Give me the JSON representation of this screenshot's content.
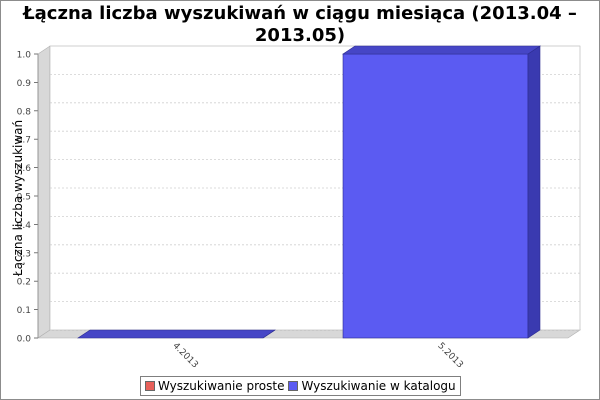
{
  "chart_data": {
    "type": "bar",
    "title_lines": [
      "Łączna liczba wyszukiwań w ciągu miesiąca (2013.04 –",
      "2013.05)"
    ],
    "ylabel": "Łączna liczba wyszukiwań",
    "xlabel": "",
    "categories": [
      "4.2013",
      "5.2013"
    ],
    "series": [
      {
        "name": "Wyszukiwanie proste",
        "values": [
          0,
          0
        ],
        "color": "#e8605a"
      },
      {
        "name": "Wyszukiwanie w katalogu",
        "values": [
          0,
          1.0
        ],
        "color": "#5b5bf2"
      }
    ],
    "ylim": [
      0,
      1.0
    ],
    "yticks": [
      "0.0",
      "0.1",
      "0.2",
      "0.3",
      "0.4",
      "0.5",
      "0.6",
      "0.7",
      "0.8",
      "0.9",
      "1.0"
    ],
    "grid": true,
    "legend_position": "bottom"
  }
}
